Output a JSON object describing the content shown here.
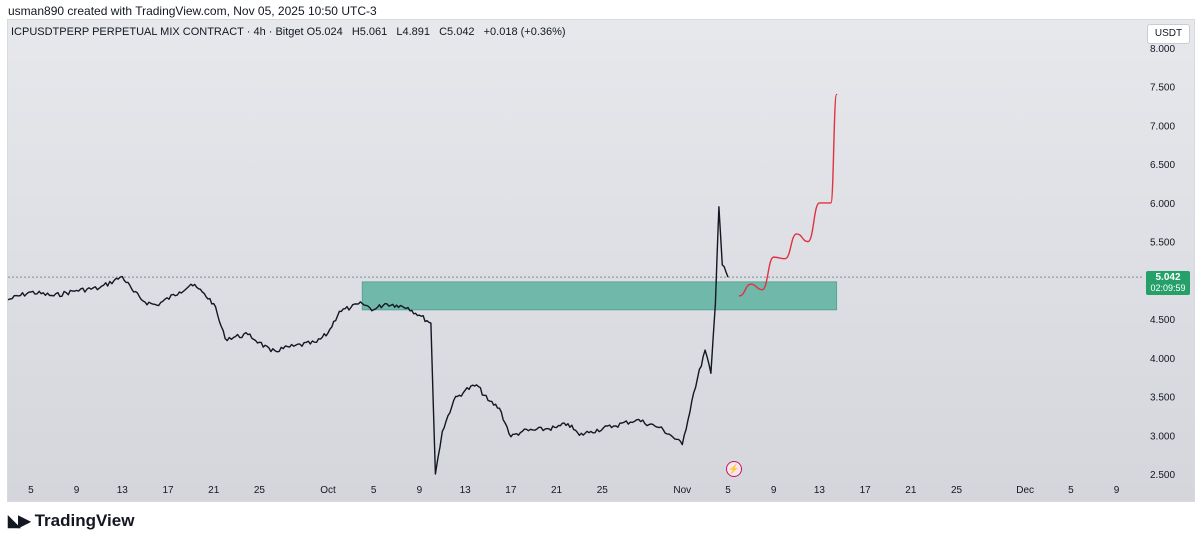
{
  "caption": "usman890 created with TradingView.com, Nov 05, 2025 10:50 UTC-3",
  "legend": {
    "symbol": "ICPUSDTPERP PERPETUAL MIX CONTRACT · 4h · Bitget",
    "open": "O5.024",
    "high": "H5.061",
    "low": "L4.891",
    "close": "C5.042",
    "change": "+0.018 (+0.36%)"
  },
  "currency": "USDT",
  "last_price": "5.042",
  "countdown": "02:09:59",
  "brand": "TradingView",
  "colors": {
    "price_line": "#131722",
    "zone": "#6fb8aa",
    "projection": "#e2313f",
    "last_tag": "#26a069"
  },
  "chart_data": {
    "type": "line",
    "title": "",
    "xlabel": "",
    "ylabel": "",
    "x_ticks": [
      "5",
      "9",
      "13",
      "17",
      "21",
      "25",
      "Oct",
      "5",
      "9",
      "13",
      "17",
      "21",
      "25",
      "Nov",
      "5",
      "9",
      "13",
      "17",
      "21",
      "25",
      "Dec",
      "5",
      "9"
    ],
    "y_ticks": [
      "2.500",
      "3.000",
      "3.500",
      "4.000",
      "4.500",
      "5.000",
      "5.500",
      "6.000",
      "6.500",
      "7.000",
      "7.500",
      "8.000"
    ],
    "ylim": [
      2.5,
      8.0
    ],
    "xlim": [
      "Sep 3",
      "Dec 10"
    ],
    "series": [
      {
        "type": "price",
        "points": [
          [
            "Sep 3",
            4.75
          ],
          [
            "Sep 5",
            4.85
          ],
          [
            "Sep 7",
            4.8
          ],
          [
            "Sep 9",
            4.87
          ],
          [
            "Sep 11",
            4.9
          ],
          [
            "Sep 13",
            5.05
          ],
          [
            "Sep 14",
            4.85
          ],
          [
            "Sep 15",
            4.72
          ],
          [
            "Sep 16",
            4.68
          ],
          [
            "Sep 18",
            4.85
          ],
          [
            "Sep 19",
            4.95
          ],
          [
            "Sep 20",
            4.85
          ],
          [
            "Sep 21",
            4.7
          ],
          [
            "Sep 22",
            4.25
          ],
          [
            "Sep 24",
            4.3
          ],
          [
            "Sep 25",
            4.2
          ],
          [
            "Sep 26",
            4.08
          ],
          [
            "Sep 28",
            4.15
          ],
          [
            "Sep 30",
            4.2
          ],
          [
            "Oct 1",
            4.32
          ],
          [
            "Oct 2",
            4.6
          ],
          [
            "Oct 3",
            4.65
          ],
          [
            "Oct 4",
            4.7
          ],
          [
            "Oct 5",
            4.62
          ],
          [
            "Oct 6",
            4.7
          ],
          [
            "Oct 7",
            4.68
          ],
          [
            "Oct 8",
            4.65
          ],
          [
            "Oct 9",
            4.55
          ],
          [
            "Oct 10",
            4.45
          ],
          [
            "Oct 10.4",
            2.5
          ],
          [
            "Oct 11",
            3.05
          ],
          [
            "Oct 12",
            3.45
          ],
          [
            "Oct 13",
            3.58
          ],
          [
            "Oct 14",
            3.65
          ],
          [
            "Oct 15",
            3.45
          ],
          [
            "Oct 16",
            3.35
          ],
          [
            "Oct 17",
            2.98
          ],
          [
            "Oct 18",
            3.05
          ],
          [
            "Oct 20",
            3.08
          ],
          [
            "Oct 21",
            3.1
          ],
          [
            "Oct 22",
            3.15
          ],
          [
            "Oct 23",
            3.0
          ],
          [
            "Oct 24",
            3.05
          ],
          [
            "Oct 26",
            3.12
          ],
          [
            "Oct 28",
            3.2
          ],
          [
            "Oct 30",
            3.1
          ],
          [
            "Oct 31",
            3.0
          ],
          [
            "Nov 1",
            2.88
          ],
          [
            "Nov 2",
            3.55
          ],
          [
            "Nov 3",
            4.1
          ],
          [
            "Nov 3.5",
            3.8
          ],
          [
            "Nov 3.9",
            4.7
          ],
          [
            "Nov 4.2",
            5.95
          ],
          [
            "Nov 4.5",
            5.2
          ],
          [
            "Nov 5",
            5.042
          ]
        ]
      },
      {
        "type": "drawn projection",
        "points": [
          [
            "Nov 6",
            4.8
          ],
          [
            "Nov 7",
            4.95
          ],
          [
            "Nov 8",
            4.88
          ],
          [
            "Nov 9",
            5.3
          ],
          [
            "Nov 10",
            5.28
          ],
          [
            "Nov 11",
            5.6
          ],
          [
            "Nov 12",
            5.5
          ],
          [
            "Nov 13",
            6.0
          ],
          [
            "Nov 14",
            6.0
          ],
          [
            "Nov 14.5",
            7.4
          ]
        ]
      }
    ],
    "zones": [
      {
        "type": "support rectangle",
        "x_start": "Oct 4",
        "x_end": "Nov 14.5",
        "y_low": 4.62,
        "y_high": 4.98
      }
    ]
  }
}
